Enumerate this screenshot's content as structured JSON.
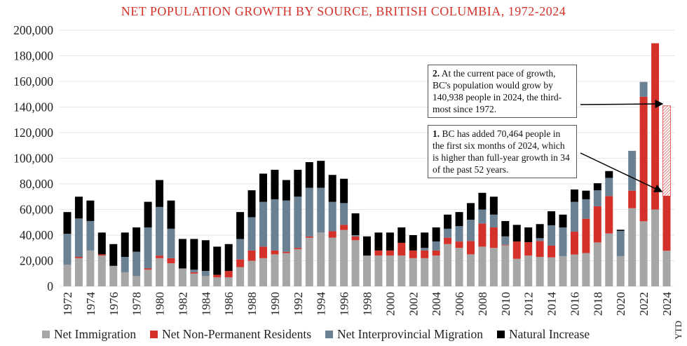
{
  "colors": {
    "title": "#d4312b",
    "immigration": "#a6a6a6",
    "npr": "#d4312b",
    "interprovincial": "#6a8194",
    "natural": "#000000",
    "grid": "#e6e6e6"
  },
  "chart_data": {
    "type": "bar",
    "stacked": true,
    "title": "NET POPULATION GROWTH BY SOURCE, BRITISH COLUMBIA, 1972-2024",
    "xlabel": "",
    "ylabel": "",
    "ylim": [
      0,
      200000
    ],
    "yticks": [
      "0",
      "20,000",
      "40,000",
      "60,000",
      "80,000",
      "100,000",
      "120,000",
      "140,000",
      "160,000",
      "180,000",
      "200,000"
    ],
    "grid": true,
    "legend_position": "bottom",
    "categories": [
      "1972",
      "1973",
      "1974",
      "1975",
      "1976",
      "1977",
      "1978",
      "1979",
      "1980",
      "1981",
      "1982",
      "1983",
      "1984",
      "1985",
      "1986",
      "1987",
      "1988",
      "1989",
      "1990",
      "1991",
      "1992",
      "1993",
      "1994",
      "1995",
      "1996",
      "1997",
      "1998",
      "1999",
      "2000",
      "2001",
      "2002",
      "2003",
      "2004",
      "2005",
      "2006",
      "2007",
      "2008",
      "2009",
      "2010",
      "2011",
      "2012",
      "2013",
      "2014",
      "2015",
      "2016",
      "2017",
      "2018",
      "2019",
      "2020",
      "2021",
      "2022",
      "2023",
      "2024"
    ],
    "last_category_note": "YTD",
    "series": [
      {
        "name": "Net Immigration",
        "values": [
          17000,
          22000,
          28000,
          24000,
          16000,
          11000,
          8000,
          13000,
          22000,
          18000,
          14000,
          10000,
          8000,
          7000,
          7000,
          15000,
          20000,
          22000,
          25000,
          26000,
          29000,
          38000,
          42000,
          38000,
          44000,
          36000,
          24000,
          24000,
          24000,
          24000,
          22000,
          22000,
          24000,
          33000,
          30000,
          25000,
          31000,
          30000,
          32000,
          21500,
          24000,
          23000,
          22600,
          23600,
          24800,
          26000,
          34300,
          41300,
          23600,
          61000,
          50800,
          60000,
          27800
        ]
      },
      {
        "name": "Net Non-Permanent Residents",
        "values": [
          0,
          1000,
          0,
          1000,
          0,
          0,
          0,
          1000,
          2000,
          4000,
          0,
          1000,
          0,
          2000,
          5000,
          6000,
          8000,
          9000,
          3000,
          1000,
          1000,
          1000,
          0,
          5000,
          4000,
          3000,
          0,
          4000,
          4000,
          10000,
          6000,
          6000,
          4000,
          5000,
          5000,
          10400,
          18000,
          16000,
          500,
          13500,
          10500,
          12400,
          9200,
          0,
          17900,
          26800,
          28200,
          29200,
          0,
          13700,
          97200,
          129800,
          42664
        ]
      },
      {
        "name": "Net Interprovincial Migration",
        "values": [
          24000,
          30000,
          23000,
          0,
          0,
          12000,
          19000,
          32000,
          38000,
          23000,
          0,
          2000,
          4000,
          0,
          0,
          16000,
          26000,
          35000,
          40000,
          40000,
          40000,
          38000,
          35000,
          23000,
          17000,
          1000,
          0,
          0,
          0,
          0,
          0,
          2000,
          7000,
          7000,
          12000,
          16600,
          11000,
          10000,
          6500,
          0,
          0,
          2200,
          15900,
          22400,
          23300,
          15200,
          12500,
          14200,
          19700,
          31100,
          11600,
          0,
          0
        ]
      },
      {
        "name": "Natural Increase",
        "values": [
          17000,
          17000,
          16000,
          17000,
          17000,
          19000,
          19000,
          20000,
          21000,
          22000,
          23000,
          24000,
          24000,
          22000,
          21000,
          21000,
          21000,
          22000,
          23000,
          16000,
          21000,
          20000,
          21000,
          21000,
          19000,
          17000,
          15000,
          14000,
          14000,
          12000,
          12000,
          12000,
          11000,
          11000,
          11000,
          13000,
          13000,
          14000,
          12000,
          13000,
          11500,
          11000,
          10900,
          10000,
          9600,
          6700,
          5500,
          5300,
          900,
          0,
          0,
          0,
          0
        ]
      }
    ],
    "projection": {
      "category": "2024",
      "value": 140938,
      "pattern": "hatched"
    },
    "annotations": [
      {
        "number": "2.",
        "text": "At the current pace of growth, BC's population would grow by 140,938 people in 2024, the third-most since 1972."
      },
      {
        "number": "1.",
        "text": "BC has added 70,464 people in the first six months of 2024, which is higher than full-year growth in 34 of the past 52 years."
      }
    ]
  }
}
